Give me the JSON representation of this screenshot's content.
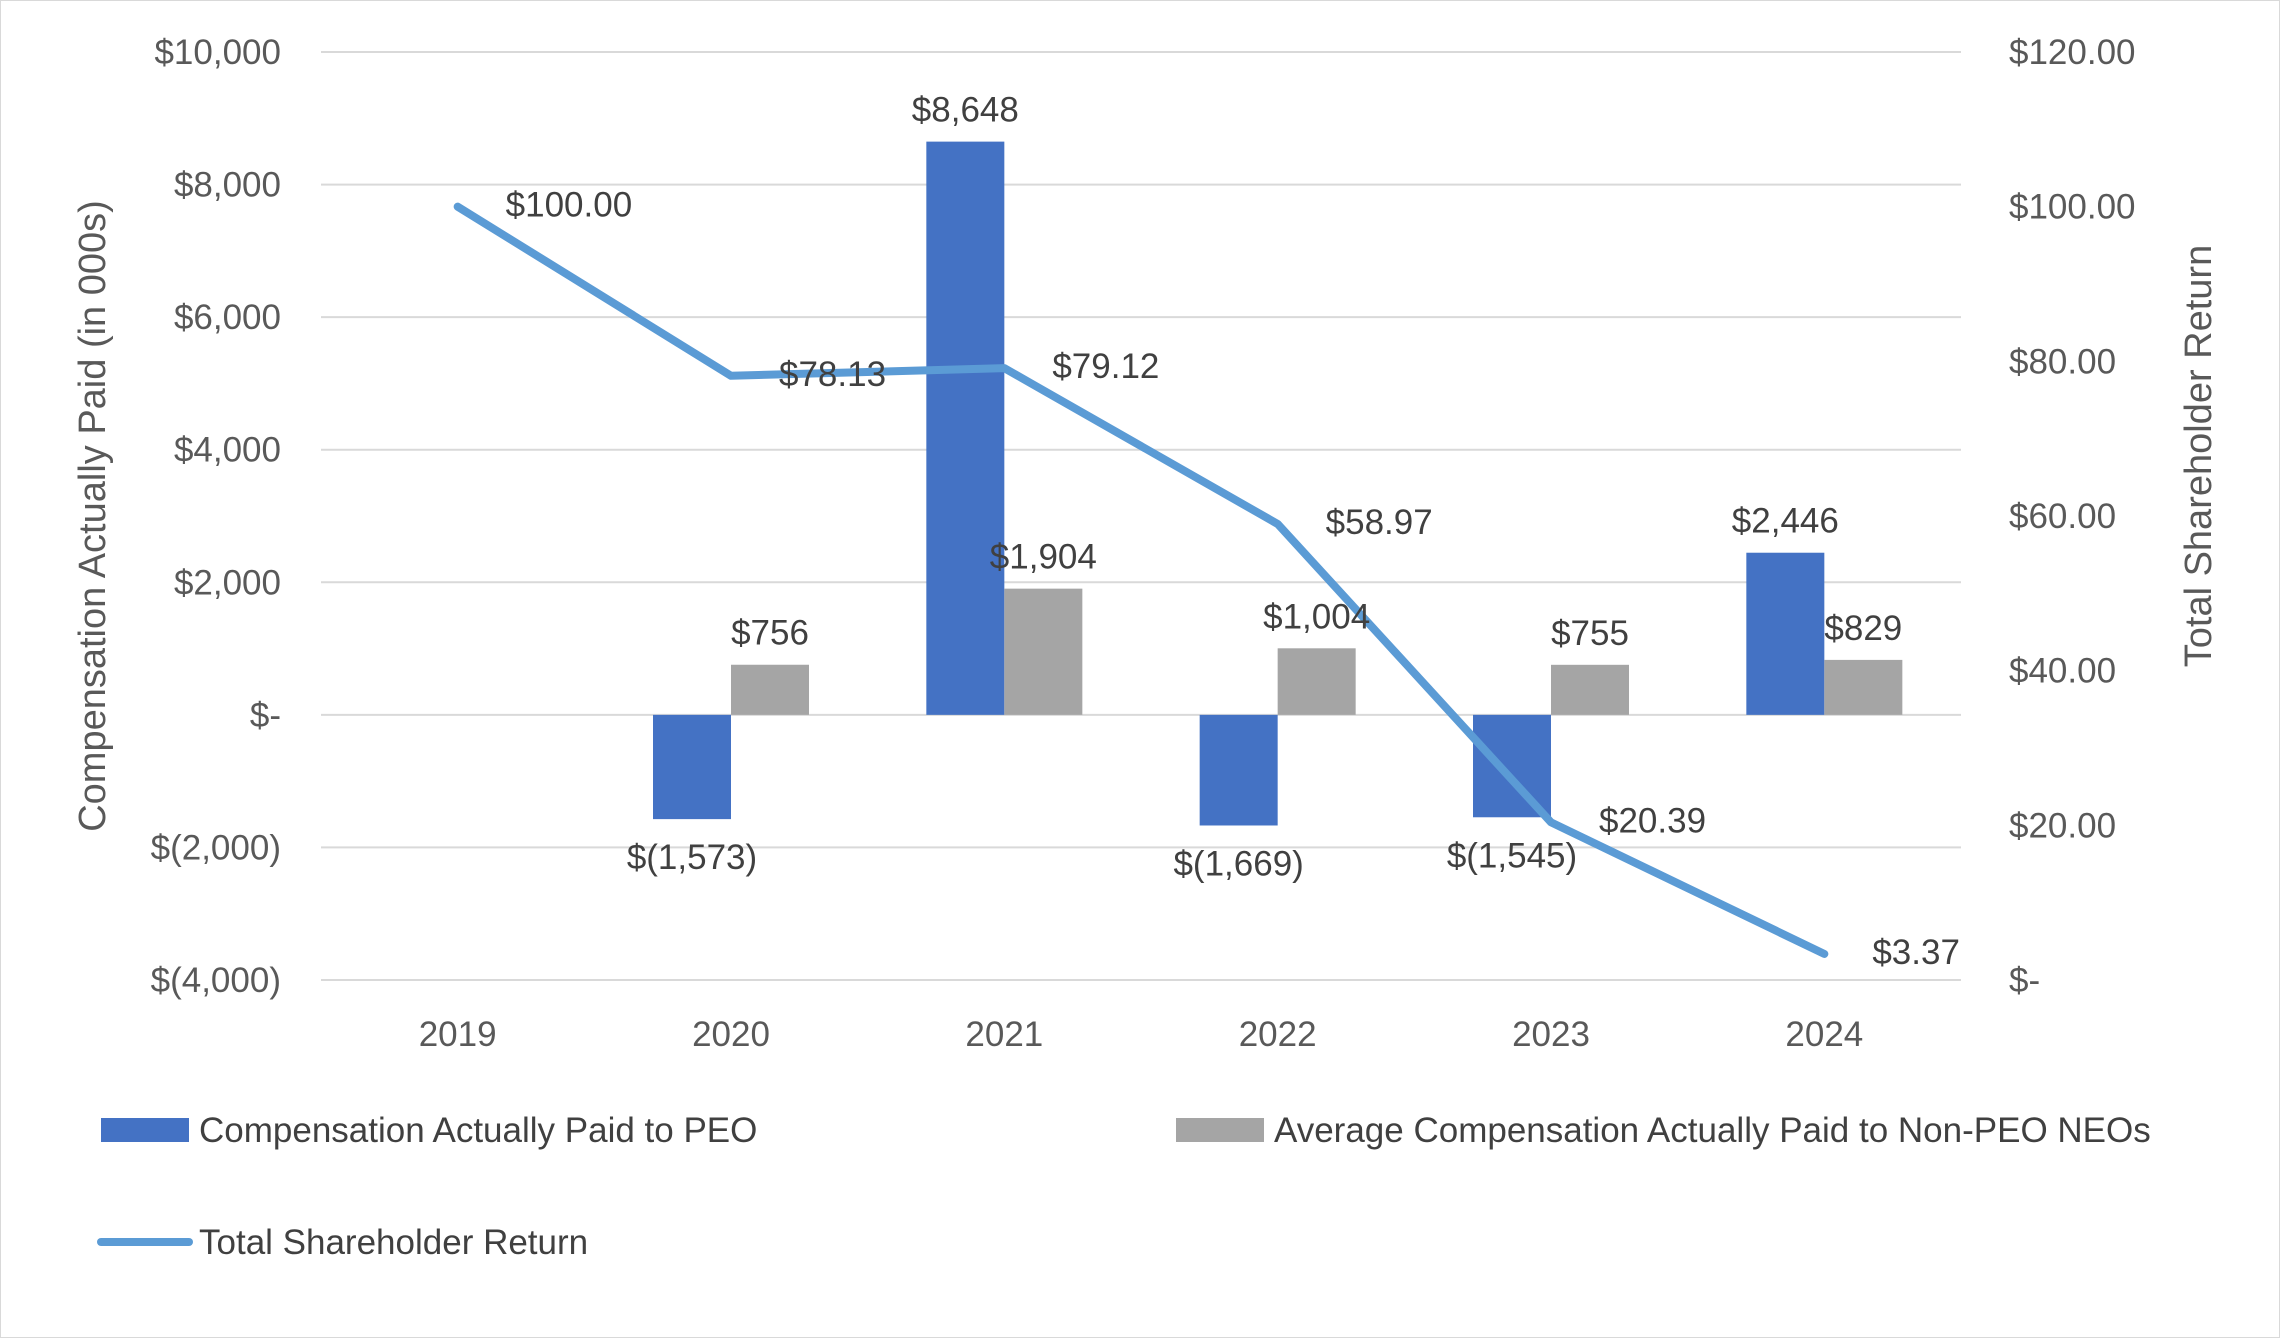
{
  "chart_data": {
    "type": "bar",
    "title": "",
    "categories": [
      "2019",
      "2020",
      "2021",
      "2022",
      "2023",
      "2024"
    ],
    "ylabel": "Compensation Actually Paid (in 000s)",
    "y2label": "Total Shareholder Return",
    "ylim": [
      -4000,
      10000
    ],
    "y2lim": [
      0,
      120
    ],
    "yticks": [
      10000,
      8000,
      6000,
      4000,
      2000,
      0,
      -2000,
      -4000
    ],
    "ytick_labels": [
      "$10,000",
      "$8,000",
      "$6,000",
      "$4,000",
      "$2,000",
      "$-",
      "$(2,000)",
      "$(4,000)"
    ],
    "y2ticks": [
      120,
      100,
      80,
      60,
      40,
      20,
      0
    ],
    "y2tick_labels": [
      "$120.00",
      "$100.00",
      "$80.00",
      "$60.00",
      "$40.00",
      "$20.00",
      "$-"
    ],
    "grid": true,
    "legend_position": "bottom",
    "series": [
      {
        "name": "Compensation Actually Paid to PEO",
        "type": "bar",
        "axis": "left",
        "color": "#4472C4",
        "values": [
          null,
          -1573,
          8648,
          -1669,
          -1545,
          2446
        ],
        "labels": [
          "",
          "$(1,573)",
          "$8,648",
          "$(1,669)",
          "$(1,545)",
          "$2,446"
        ]
      },
      {
        "name": "Average Compensation Actually Paid to Non-PEO NEOs",
        "type": "bar",
        "axis": "left",
        "color": "#A5A5A5",
        "values": [
          null,
          756,
          1904,
          1004,
          755,
          829
        ],
        "labels": [
          "",
          "$756",
          "$1,904",
          "$1,004",
          "$755",
          "$829"
        ]
      },
      {
        "name": "Total Shareholder Return",
        "type": "line",
        "axis": "right",
        "color": "#5B9BD5",
        "values": [
          100.0,
          78.13,
          79.12,
          58.97,
          20.39,
          3.37
        ],
        "labels": [
          "$100.00",
          "$78.13",
          "$79.12",
          "$58.97",
          "$20.39",
          "$3.37"
        ]
      }
    ]
  }
}
